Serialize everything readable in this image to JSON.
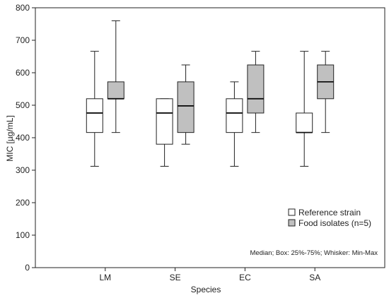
{
  "chart_data": {
    "type": "box",
    "xlabel": "Species",
    "ylabel": "MIC [µg/mL]",
    "ylim": [
      0,
      800
    ],
    "yticks": [
      0,
      100,
      200,
      300,
      400,
      500,
      600,
      700,
      800
    ],
    "categories": [
      "LM",
      "SE",
      "EC",
      "SA"
    ],
    "grid": false,
    "legend_position": "bottom-right",
    "note": "Median; Box: 25%-75%; Whisker: Min-Max",
    "series": [
      {
        "name": "Reference strain",
        "fill": "#ffffff",
        "stats": [
          {
            "min": 312,
            "q1": 416,
            "median": 476,
            "q3": 520,
            "max": 666
          },
          {
            "min": 312,
            "q1": 380,
            "median": 476,
            "q3": 520,
            "max": 520
          },
          {
            "min": 312,
            "q1": 416,
            "median": 476,
            "q3": 520,
            "max": 572
          },
          {
            "min": 312,
            "q1": 416,
            "median": 416,
            "q3": 476,
            "max": 666
          }
        ]
      },
      {
        "name": "Food isolates (n=5)",
        "fill": "#c0c0c0",
        "stats": [
          {
            "min": 416,
            "q1": 520,
            "median": 520,
            "q3": 572,
            "max": 760
          },
          {
            "min": 380,
            "q1": 416,
            "median": 498,
            "q3": 572,
            "max": 624
          },
          {
            "min": 416,
            "q1": 476,
            "median": 520,
            "q3": 624,
            "max": 666
          },
          {
            "min": 416,
            "q1": 520,
            "median": 572,
            "q3": 624,
            "max": 666
          }
        ]
      }
    ]
  }
}
